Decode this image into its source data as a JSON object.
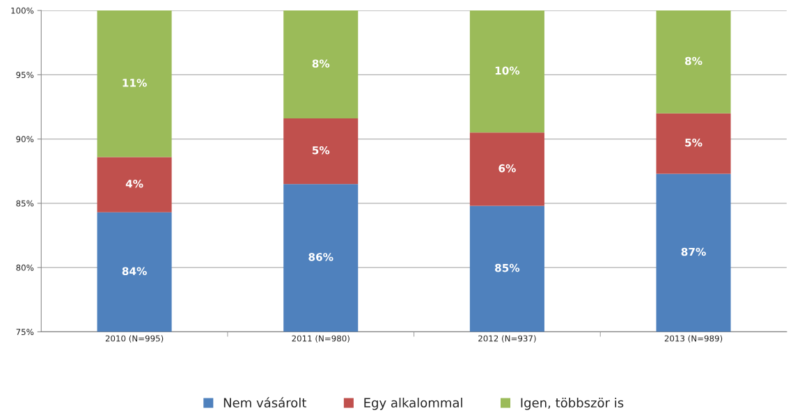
{
  "chart_data": {
    "type": "bar",
    "stacked": true,
    "categories": [
      "2010 (N=995)",
      "2011 (N=980)",
      "2012 (N=937)",
      "2013 (N=989)"
    ],
    "series": [
      {
        "name": "Nem vásárolt",
        "color": "#4f81bd",
        "values": [
          84.3,
          86.5,
          84.8,
          87.3
        ],
        "value_labels": [
          "84%",
          "86%",
          "85%",
          "87%"
        ]
      },
      {
        "name": "Egy alkalommal",
        "color": "#c0504d",
        "base": [
          84.3,
          86.5,
          84.8,
          87.3
        ],
        "values": [
          4.3,
          5.1,
          5.7,
          4.7
        ],
        "value_labels": [
          "4%",
          "5%",
          "6%",
          "5%"
        ]
      },
      {
        "name": "Igen, többször is",
        "color": "#9bbb59",
        "base": [
          88.6,
          91.6,
          90.5,
          92.0
        ],
        "values": [
          11.4,
          8.4,
          9.5,
          8.0
        ],
        "value_labels": [
          "11%",
          "8%",
          "10%",
          "8%"
        ]
      }
    ],
    "ylim": [
      75,
      100
    ],
    "yticks": [
      {
        "value": 75,
        "label": "75%"
      },
      {
        "value": 80,
        "label": "80%"
      },
      {
        "value": 85,
        "label": "85%"
      },
      {
        "value": 90,
        "label": "90%"
      },
      {
        "value": 95,
        "label": "95%"
      },
      {
        "value": 100,
        "label": "100%"
      }
    ],
    "grid": "y",
    "legend": "bottom"
  }
}
